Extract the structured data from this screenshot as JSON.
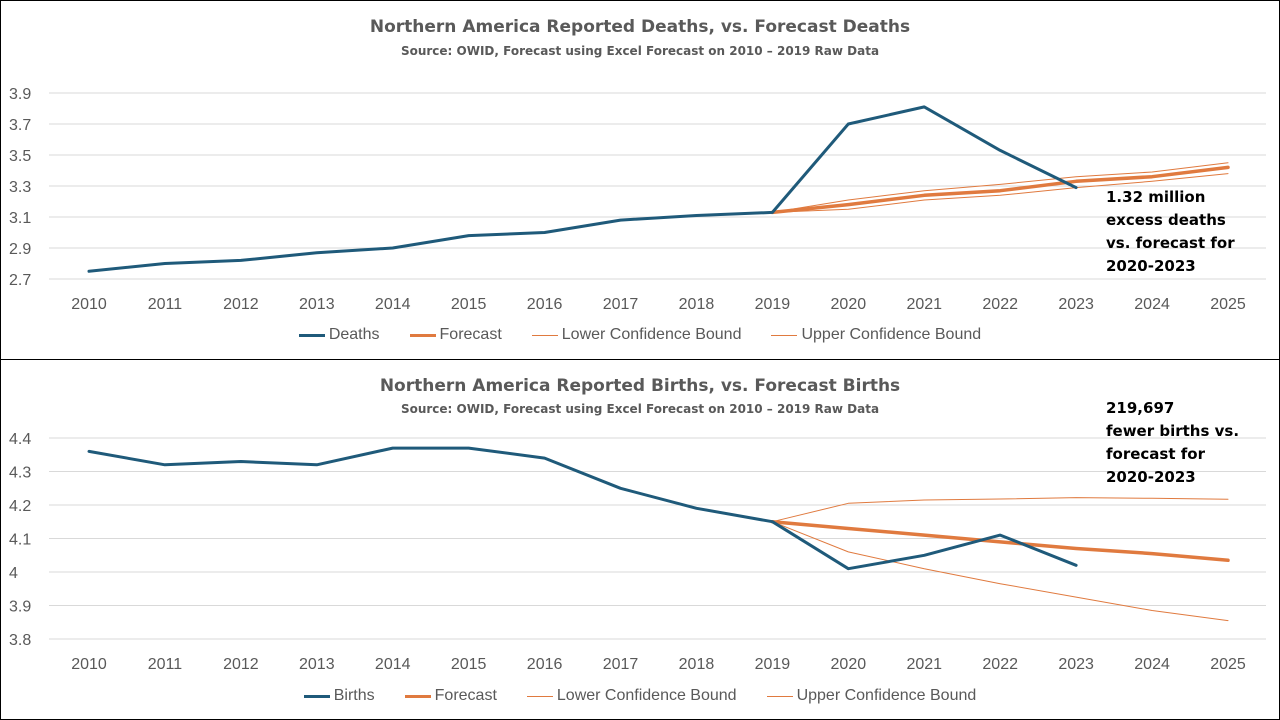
{
  "chart_data": [
    {
      "type": "line",
      "title": "Northern America Reported Deaths, vs. Forecast Deaths",
      "subtitle": "Source: OWID, Forecast using Excel Forecast on 2010 – 2019 Raw Data",
      "x": [
        "2010",
        "2011",
        "2012",
        "2013",
        "2014",
        "2015",
        "2016",
        "2017",
        "2018",
        "2019",
        "2020",
        "2021",
        "2022",
        "2023",
        "2024",
        "2025"
      ],
      "ylim": [
        2.7,
        3.9
      ],
      "yticks": [
        "3.9",
        "3.7",
        "3.5",
        "3.3",
        "3.1",
        "2.9",
        "2.7"
      ],
      "ytick_values": [
        3.9,
        3.7,
        3.5,
        3.3,
        3.1,
        2.9,
        2.7
      ],
      "grid": true,
      "legend_position": "bottom",
      "annotation": "1.32 million\nexcess deaths\nvs. forecast for\n2020-2023",
      "series": [
        {
          "name": "Deaths",
          "color": "#1f5a7a",
          "width": 3,
          "values": [
            2.75,
            2.8,
            2.82,
            2.87,
            2.9,
            2.98,
            3.0,
            3.08,
            3.11,
            3.13,
            3.7,
            3.81,
            3.53,
            3.29,
            null,
            null
          ]
        },
        {
          "name": "Forecast",
          "color": "#e07a3f",
          "width": 3.5,
          "values": [
            null,
            null,
            null,
            null,
            null,
            null,
            null,
            null,
            null,
            3.13,
            3.18,
            3.24,
            3.27,
            3.33,
            3.36,
            3.42
          ]
        },
        {
          "name": "Lower Confidence Bound",
          "color": "#e07a3f",
          "width": 1,
          "values": [
            null,
            null,
            null,
            null,
            null,
            null,
            null,
            null,
            null,
            3.13,
            3.15,
            3.21,
            3.24,
            3.29,
            3.33,
            3.38
          ]
        },
        {
          "name": "Upper Confidence Bound",
          "color": "#e07a3f",
          "width": 1,
          "values": [
            null,
            null,
            null,
            null,
            null,
            null,
            null,
            null,
            null,
            3.13,
            3.21,
            3.27,
            3.31,
            3.36,
            3.39,
            3.45
          ]
        }
      ]
    },
    {
      "type": "line",
      "title": "Northern America Reported Births, vs. Forecast Births",
      "subtitle": "Source: OWID, Forecast using Excel Forecast on 2010 – 2019 Raw Data",
      "x": [
        "2010",
        "2011",
        "2012",
        "2013",
        "2014",
        "2015",
        "2016",
        "2017",
        "2018",
        "2019",
        "2020",
        "2021",
        "2022",
        "2023",
        "2024",
        "2025"
      ],
      "ylim": [
        3.8,
        4.4
      ],
      "yticks": [
        "4.4",
        "4.3",
        "4.2",
        "4.1",
        "4",
        "3.9",
        "3.8"
      ],
      "ytick_values": [
        4.4,
        4.3,
        4.2,
        4.1,
        4.0,
        3.9,
        3.8
      ],
      "grid": true,
      "legend_position": "bottom",
      "annotation": "219,697\nfewer births vs.\nforecast for\n2020-2023",
      "series": [
        {
          "name": "Births",
          "color": "#1f5a7a",
          "width": 3,
          "values": [
            4.36,
            4.32,
            4.33,
            4.32,
            4.37,
            4.37,
            4.34,
            4.25,
            4.19,
            4.15,
            4.01,
            4.05,
            4.11,
            4.02,
            null,
            null
          ]
        },
        {
          "name": "Forecast",
          "color": "#e07a3f",
          "width": 3.5,
          "values": [
            null,
            null,
            null,
            null,
            null,
            null,
            null,
            null,
            null,
            4.15,
            4.13,
            4.11,
            4.09,
            4.07,
            4.055,
            4.035
          ]
        },
        {
          "name": "Lower Confidence Bound",
          "color": "#e07a3f",
          "width": 1,
          "values": [
            null,
            null,
            null,
            null,
            null,
            null,
            null,
            null,
            null,
            4.15,
            4.06,
            4.01,
            3.965,
            3.925,
            3.885,
            3.855
          ]
        },
        {
          "name": "Upper Confidence Bound",
          "color": "#e07a3f",
          "width": 1,
          "values": [
            null,
            null,
            null,
            null,
            null,
            null,
            null,
            null,
            null,
            4.15,
            4.205,
            4.215,
            4.218,
            4.222,
            4.22,
            4.217
          ]
        }
      ]
    }
  ]
}
